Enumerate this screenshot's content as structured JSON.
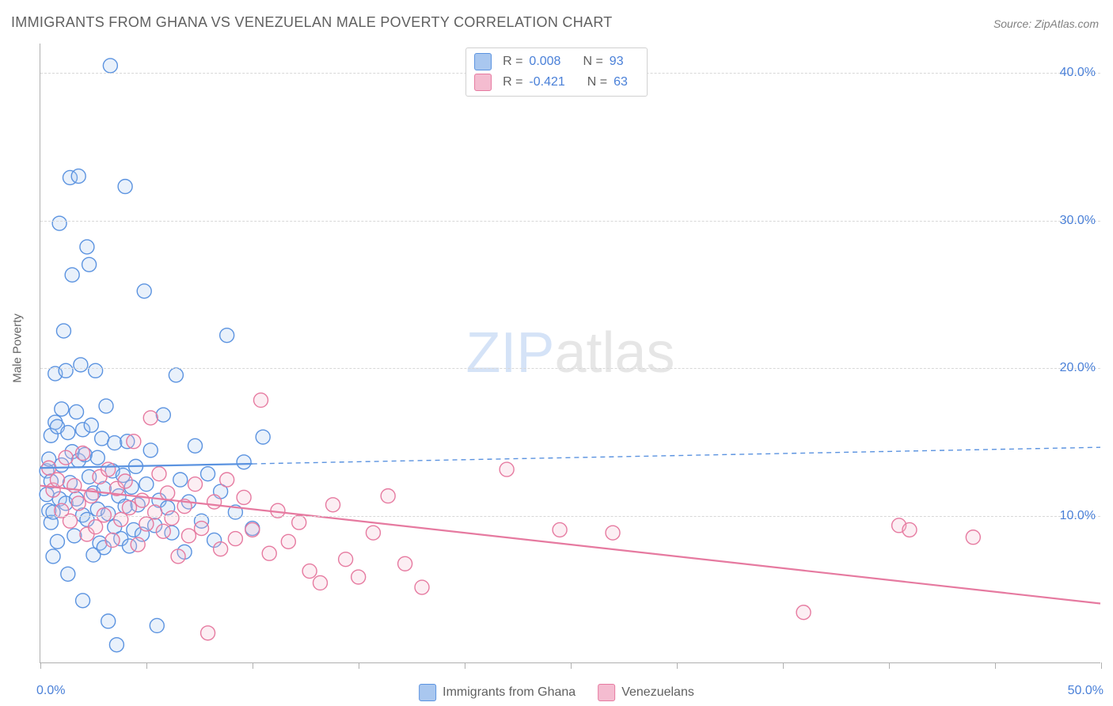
{
  "title": "IMMIGRANTS FROM GHANA VS VENEZUELAN MALE POVERTY CORRELATION CHART",
  "source": "Source: ZipAtlas.com",
  "ylabel": "Male Poverty",
  "watermark": {
    "prefix": "ZIP",
    "suffix": "atlas"
  },
  "chart": {
    "type": "scatter",
    "background_color": "#ffffff",
    "grid_color": "#d8d8d8",
    "axis_color": "#b0b0b0",
    "tick_label_color": "#4a80d8",
    "ylabel_color": "#666666",
    "ylabel_fontsize": 15,
    "title_fontsize": 18,
    "title_color": "#606060",
    "tick_fontsize": 16,
    "xlim": [
      0,
      50
    ],
    "ylim": [
      0,
      42
    ],
    "yticks": [
      10,
      20,
      30,
      40
    ],
    "ytick_labels": [
      "10.0%",
      "20.0%",
      "30.0%",
      "40.0%"
    ],
    "xtick_positions": [
      0,
      5,
      10,
      15,
      20,
      25,
      30,
      35,
      40,
      45,
      50
    ],
    "xaxis_min_label": "0.0%",
    "xaxis_max_label": "50.0%",
    "marker_radius": 9,
    "marker_stroke_width": 1.4,
    "marker_fill_opacity": 0.25,
    "trend_solid_width": 2.2,
    "trend_dash_width": 1.4,
    "trend_dash_pattern": "6 5",
    "series": [
      {
        "name": "Immigrants from Ghana",
        "key": "ghana",
        "color": "#5b93e0",
        "fill_color": "#a9c7ef",
        "r_value": "0.008",
        "n_value": "93",
        "trend": {
          "x1": 0,
          "y1": 13.2,
          "x2": 50,
          "y2": 14.6,
          "solid_until_x": 10
        },
        "points": [
          [
            0.3,
            13.0
          ],
          [
            0.3,
            11.4
          ],
          [
            0.4,
            10.3
          ],
          [
            0.4,
            13.8
          ],
          [
            0.5,
            9.5
          ],
          [
            0.5,
            12.3
          ],
          [
            0.5,
            15.4
          ],
          [
            0.6,
            10.2
          ],
          [
            0.6,
            7.2
          ],
          [
            0.7,
            16.3
          ],
          [
            0.7,
            19.6
          ],
          [
            0.8,
            16.0
          ],
          [
            0.8,
            8.2
          ],
          [
            0.9,
            11.1
          ],
          [
            0.9,
            29.8
          ],
          [
            1.0,
            13.4
          ],
          [
            1.0,
            17.2
          ],
          [
            1.1,
            22.5
          ],
          [
            1.2,
            10.8
          ],
          [
            1.2,
            19.8
          ],
          [
            1.3,
            6.0
          ],
          [
            1.3,
            15.6
          ],
          [
            1.4,
            32.9
          ],
          [
            1.4,
            12.2
          ],
          [
            1.5,
            26.3
          ],
          [
            1.5,
            14.3
          ],
          [
            1.6,
            8.6
          ],
          [
            1.7,
            11.1
          ],
          [
            1.7,
            17.0
          ],
          [
            1.8,
            33.0
          ],
          [
            1.8,
            13.7
          ],
          [
            1.9,
            20.2
          ],
          [
            2.0,
            10.0
          ],
          [
            2.0,
            15.8
          ],
          [
            2.0,
            4.2
          ],
          [
            2.1,
            14.1
          ],
          [
            2.2,
            28.2
          ],
          [
            2.2,
            9.7
          ],
          [
            2.3,
            12.6
          ],
          [
            2.3,
            27.0
          ],
          [
            2.4,
            16.1
          ],
          [
            2.5,
            7.3
          ],
          [
            2.5,
            11.5
          ],
          [
            2.6,
            19.8
          ],
          [
            2.7,
            10.4
          ],
          [
            2.7,
            13.9
          ],
          [
            2.8,
            8.1
          ],
          [
            2.9,
            15.2
          ],
          [
            3.0,
            11.8
          ],
          [
            3.0,
            7.8
          ],
          [
            3.1,
            17.4
          ],
          [
            3.2,
            10.1
          ],
          [
            3.2,
            2.8
          ],
          [
            3.3,
            40.5
          ],
          [
            3.4,
            13.0
          ],
          [
            3.5,
            9.2
          ],
          [
            3.5,
            14.9
          ],
          [
            3.6,
            1.2
          ],
          [
            3.7,
            11.3
          ],
          [
            3.8,
            8.4
          ],
          [
            3.9,
            12.7
          ],
          [
            4.0,
            10.6
          ],
          [
            4.0,
            32.3
          ],
          [
            4.1,
            15.0
          ],
          [
            4.2,
            7.9
          ],
          [
            4.3,
            11.9
          ],
          [
            4.4,
            9.0
          ],
          [
            4.5,
            13.3
          ],
          [
            4.6,
            10.7
          ],
          [
            4.8,
            8.7
          ],
          [
            4.9,
            25.2
          ],
          [
            5.0,
            12.1
          ],
          [
            5.2,
            14.4
          ],
          [
            5.4,
            9.3
          ],
          [
            5.5,
            2.5
          ],
          [
            5.6,
            11.0
          ],
          [
            5.8,
            16.8
          ],
          [
            6.0,
            10.5
          ],
          [
            6.2,
            8.8
          ],
          [
            6.4,
            19.5
          ],
          [
            6.6,
            12.4
          ],
          [
            6.8,
            7.5
          ],
          [
            7.0,
            10.9
          ],
          [
            7.3,
            14.7
          ],
          [
            7.6,
            9.6
          ],
          [
            7.9,
            12.8
          ],
          [
            8.2,
            8.3
          ],
          [
            8.5,
            11.6
          ],
          [
            8.8,
            22.2
          ],
          [
            9.2,
            10.2
          ],
          [
            9.6,
            13.6
          ],
          [
            10.0,
            9.1
          ],
          [
            10.5,
            15.3
          ]
        ]
      },
      {
        "name": "Venezuelans",
        "key": "venez",
        "color": "#e67aa0",
        "fill_color": "#f4bcd0",
        "r_value": "-0.421",
        "n_value": "63",
        "trend": {
          "x1": 0,
          "y1": 12.0,
          "x2": 50,
          "y2": 4.0,
          "solid_until_x": 50
        },
        "points": [
          [
            0.4,
            13.2
          ],
          [
            0.6,
            11.7
          ],
          [
            0.8,
            12.4
          ],
          [
            1.0,
            10.3
          ],
          [
            1.2,
            13.9
          ],
          [
            1.4,
            9.6
          ],
          [
            1.6,
            12.0
          ],
          [
            1.8,
            10.8
          ],
          [
            2.0,
            14.2
          ],
          [
            2.2,
            8.7
          ],
          [
            2.4,
            11.3
          ],
          [
            2.6,
            9.2
          ],
          [
            2.8,
            12.6
          ],
          [
            3.0,
            10.0
          ],
          [
            3.2,
            13.1
          ],
          [
            3.4,
            8.3
          ],
          [
            3.6,
            11.8
          ],
          [
            3.8,
            9.7
          ],
          [
            4.0,
            12.3
          ],
          [
            4.2,
            10.5
          ],
          [
            4.4,
            15.0
          ],
          [
            4.6,
            8.0
          ],
          [
            4.8,
            11.0
          ],
          [
            5.0,
            9.4
          ],
          [
            5.2,
            16.6
          ],
          [
            5.4,
            10.2
          ],
          [
            5.6,
            12.8
          ],
          [
            5.8,
            8.9
          ],
          [
            6.0,
            11.5
          ],
          [
            6.2,
            9.8
          ],
          [
            6.5,
            7.2
          ],
          [
            6.8,
            10.6
          ],
          [
            7.0,
            8.6
          ],
          [
            7.3,
            12.1
          ],
          [
            7.6,
            9.1
          ],
          [
            7.9,
            2.0
          ],
          [
            8.2,
            10.9
          ],
          [
            8.5,
            7.7
          ],
          [
            8.8,
            12.4
          ],
          [
            9.2,
            8.4
          ],
          [
            9.6,
            11.2
          ],
          [
            10.0,
            9.0
          ],
          [
            10.4,
            17.8
          ],
          [
            10.8,
            7.4
          ],
          [
            11.2,
            10.3
          ],
          [
            11.7,
            8.2
          ],
          [
            12.2,
            9.5
          ],
          [
            12.7,
            6.2
          ],
          [
            13.2,
            5.4
          ],
          [
            13.8,
            10.7
          ],
          [
            14.4,
            7.0
          ],
          [
            15.0,
            5.8
          ],
          [
            15.7,
            8.8
          ],
          [
            16.4,
            11.3
          ],
          [
            17.2,
            6.7
          ],
          [
            18.0,
            5.1
          ],
          [
            22.0,
            13.1
          ],
          [
            24.5,
            9.0
          ],
          [
            27.0,
            8.8
          ],
          [
            36.0,
            3.4
          ],
          [
            40.5,
            9.3
          ],
          [
            41.0,
            9.0
          ],
          [
            44.0,
            8.5
          ]
        ]
      }
    ]
  },
  "stat_legend": {
    "r_label": "R =",
    "n_label": "N ="
  },
  "bottom_legend_labels": [
    "Immigrants from Ghana",
    "Venezuelans"
  ]
}
